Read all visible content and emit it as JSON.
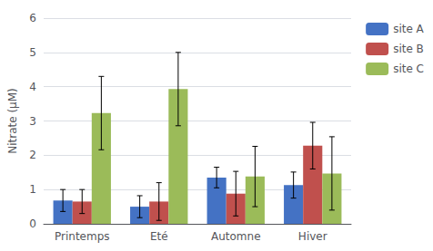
{
  "chart_data": {
    "type": "bar",
    "categories": [
      "Printemps",
      "Eté",
      "Automne",
      "Hiver"
    ],
    "series": [
      {
        "name": "site A",
        "color": "#4472C4",
        "values": [
          0.68,
          0.5,
          1.35,
          1.13
        ],
        "errors": [
          0.32,
          0.32,
          0.3,
          0.38
        ]
      },
      {
        "name": "site B",
        "color": "#C0504D",
        "values": [
          0.65,
          0.65,
          0.88,
          2.28
        ],
        "errors": [
          0.35,
          0.55,
          0.65,
          0.68
        ]
      },
      {
        "name": "site C",
        "color": "#9BBB59",
        "values": [
          3.23,
          3.93,
          1.38,
          1.47
        ],
        "errors": [
          1.07,
          1.07,
          0.88,
          1.07
        ]
      }
    ],
    "ylabel": "Nitrate (µM)",
    "ylim": [
      0,
      6
    ],
    "yticks": [
      0,
      1,
      2,
      3,
      4,
      5,
      6
    ],
    "grid": true,
    "legend": "right"
  }
}
